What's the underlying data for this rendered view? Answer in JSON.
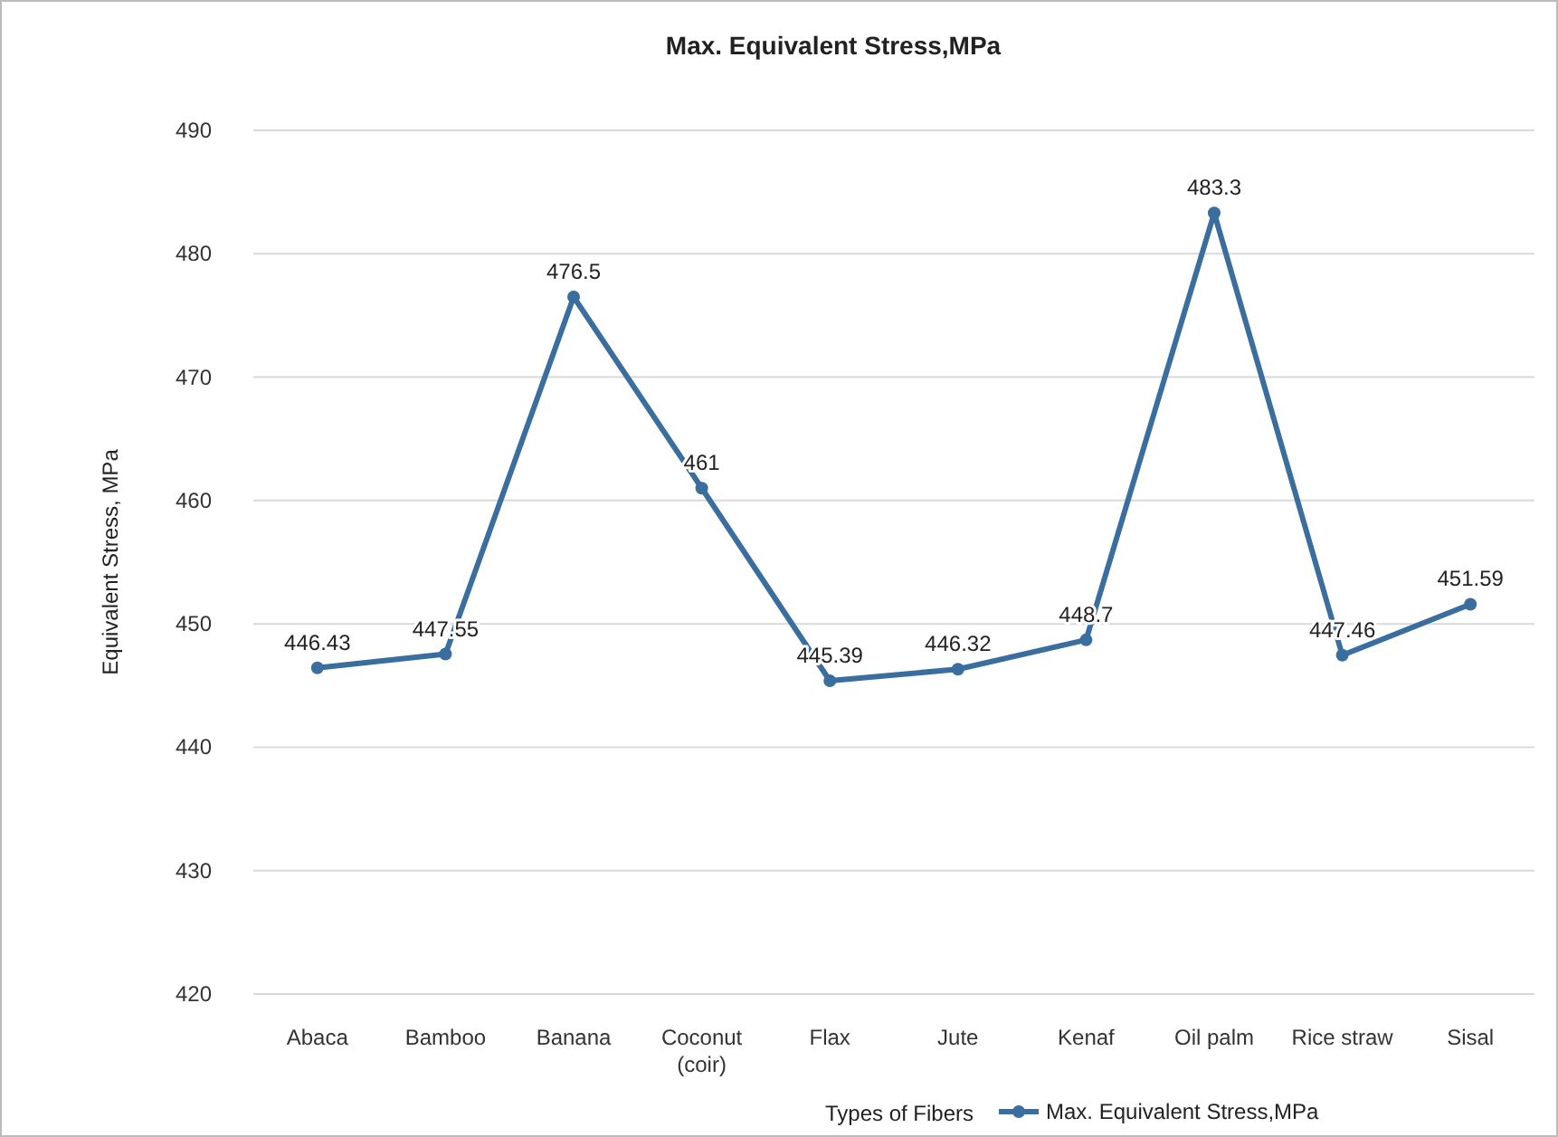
{
  "chart_data": {
    "type": "line",
    "title": "Max. Equivalent Stress,MPa",
    "xlabel": "Types of Fibers",
    "ylabel": "Equivalent Stress, MPa",
    "categories": [
      "Abaca",
      "Bamboo",
      "Banana",
      "Coconut (coir)",
      "Flax",
      "Jute",
      "Kenaf",
      "Oil palm",
      "Rice straw",
      "Sisal"
    ],
    "series": [
      {
        "name": "Max. Equivalent Stress,MPa",
        "color": "#3a6e9f",
        "values": [
          446.43,
          447.55,
          476.5,
          461,
          445.39,
          446.32,
          448.7,
          483.3,
          447.46,
          451.59
        ]
      }
    ],
    "ylim": [
      420,
      490
    ],
    "yticks": [
      420,
      430,
      440,
      450,
      460,
      470,
      480,
      490
    ],
    "grid": "y",
    "legend": "bottom",
    "marker": "circle",
    "data_labels": true
  }
}
